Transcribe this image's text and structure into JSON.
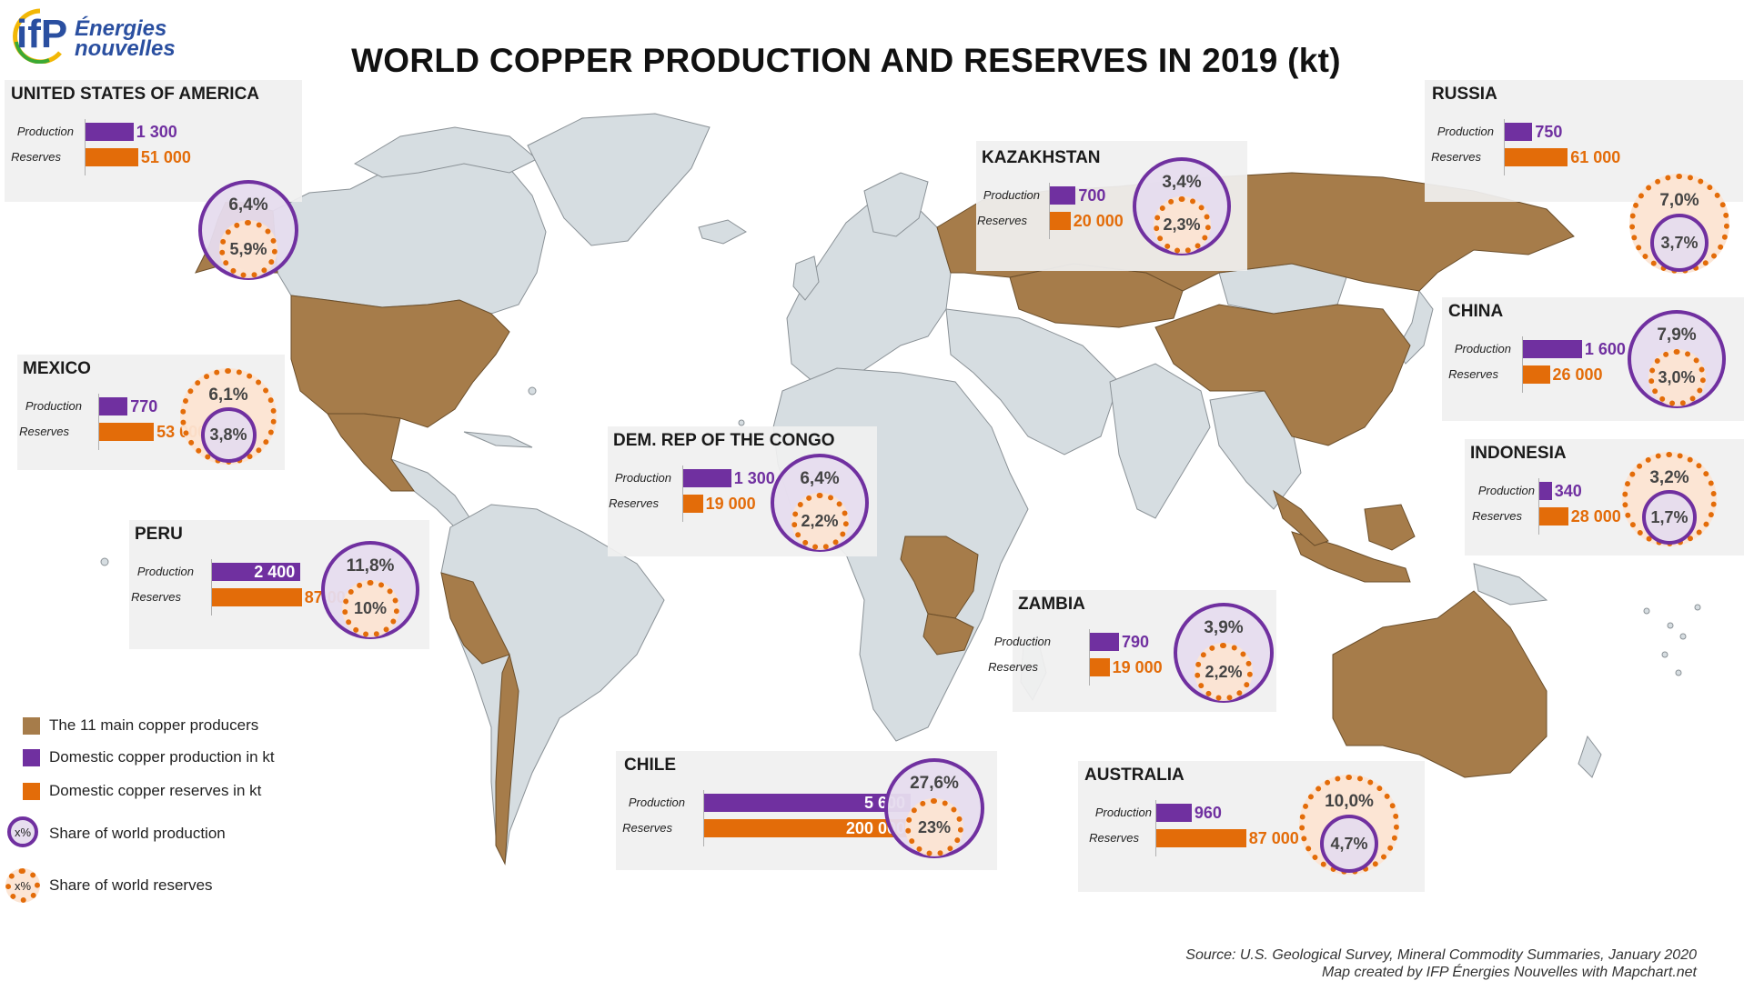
{
  "title": "WORLD COPPER PRODUCTION AND RESERVES IN 2019 (kt)",
  "logo": {
    "mark": "ifP",
    "line1": "Énergies",
    "line2": "nouvelles"
  },
  "row_labels": {
    "production": "Production",
    "reserves": "Reserves"
  },
  "colors": {
    "production": "#7030a0",
    "reserves": "#e36c09",
    "producer_land": "#a67c4a",
    "other_land": "#d6dde1",
    "ocean": "#ffffff"
  },
  "countries": [
    {
      "key": "usa",
      "name": "UNITED STATES OF AMERICA",
      "production": 1300,
      "reserves": 51000,
      "production_label": "1 300",
      "reserves_label": "51 000",
      "production_share": "6,4%",
      "reserves_share": "5,9%"
    },
    {
      "key": "russia",
      "name": "RUSSIA",
      "production": 750,
      "reserves": 61000,
      "production_label": "750",
      "reserves_label": "61 000",
      "production_share": "3,7%",
      "reserves_share": "7,0%"
    },
    {
      "key": "kazakhstan",
      "name": "KAZAKHSTAN",
      "production": 700,
      "reserves": 20000,
      "production_label": "700",
      "reserves_label": "20 000",
      "production_share": "3,4%",
      "reserves_share": "2,3%"
    },
    {
      "key": "china",
      "name": "CHINA",
      "production": 1600,
      "reserves": 26000,
      "production_label": "1 600",
      "reserves_label": "26 000",
      "production_share": "7,9%",
      "reserves_share": "3,0%"
    },
    {
      "key": "mexico",
      "name": "MEXICO",
      "production": 770,
      "reserves": 53000,
      "production_label": "770",
      "reserves_label": "53 000",
      "production_share": "3,8%",
      "reserves_share": "6,1%"
    },
    {
      "key": "drc",
      "name": "DEM. REP OF THE CONGO",
      "production": 1300,
      "reserves": 19000,
      "production_label": "1 300",
      "reserves_label": "19 000",
      "production_share": "6,4%",
      "reserves_share": "2,2%"
    },
    {
      "key": "indonesia",
      "name": "INDONESIA",
      "production": 340,
      "reserves": 28000,
      "production_label": "340",
      "reserves_label": "28 000",
      "production_share": "1,7%",
      "reserves_share": "3,2%"
    },
    {
      "key": "peru",
      "name": "PERU",
      "production": 2400,
      "reserves": 87000,
      "production_label": "2 400",
      "reserves_label": "87 000",
      "production_share": "11,8%",
      "reserves_share": "10%"
    },
    {
      "key": "zambia",
      "name": "ZAMBIA",
      "production": 790,
      "reserves": 19000,
      "production_label": "790",
      "reserves_label": "19 000",
      "production_share": "3,9%",
      "reserves_share": "2,2%"
    },
    {
      "key": "chile",
      "name": "CHILE",
      "production": 5600,
      "reserves": 200000,
      "production_label": "5 600",
      "reserves_label": "200 000",
      "production_share": "27,6%",
      "reserves_share": "23%"
    },
    {
      "key": "australia",
      "name": "AUSTRALIA",
      "production": 960,
      "reserves": 87000,
      "production_label": "960",
      "reserves_label": "87 000",
      "production_share": "4,7%",
      "reserves_share": "10,0%"
    }
  ],
  "legend": {
    "producers": "The 11 main copper producers",
    "production": "Domestic copper production in kt",
    "reserves": "Domestic copper reserves in kt",
    "production_share": "Share of world production",
    "reserves_share": "Share of world reserves",
    "circle_glyph": "x%"
  },
  "source": {
    "line1": "Source: U.S. Geological Survey,  Mineral Commodity Summaries, January 2020",
    "line2": "Map created by IFP Énergies  Nouvelles with Mapchart.net"
  }
}
